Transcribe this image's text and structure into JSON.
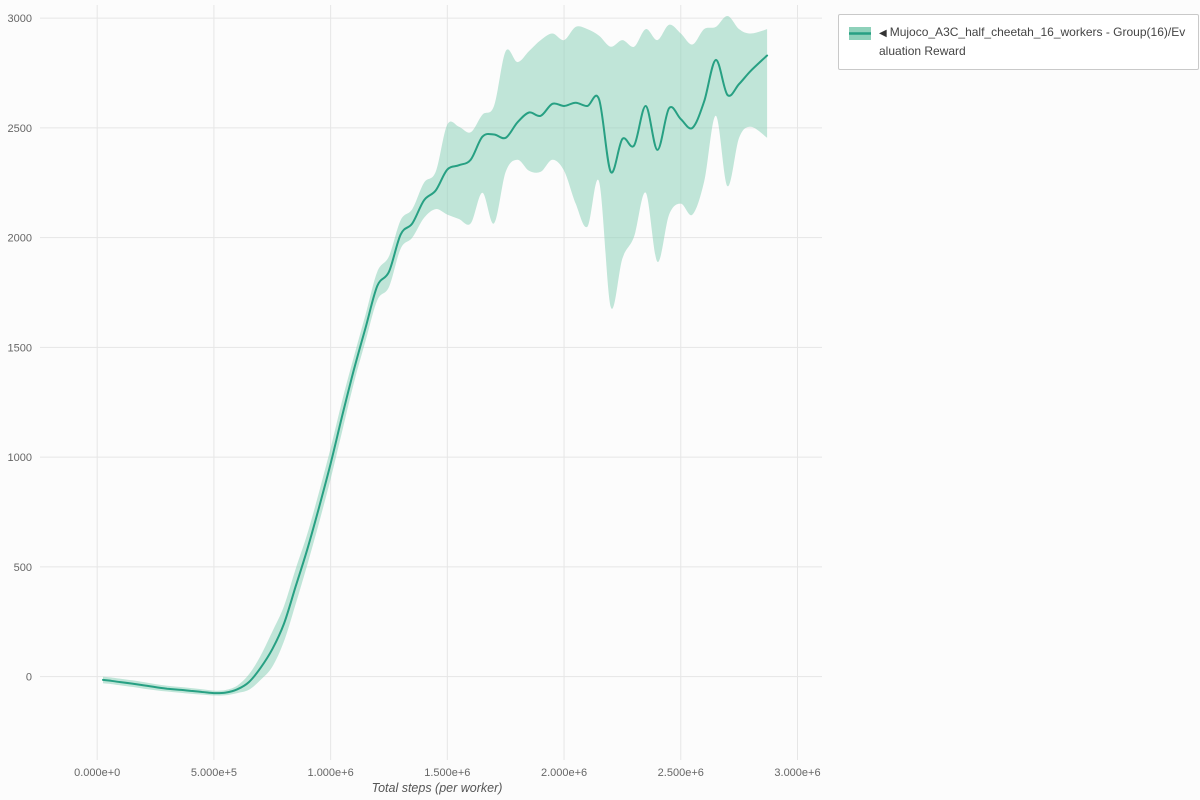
{
  "page": {
    "background": "#fcfcfc"
  },
  "axes": {
    "xlabel": "Total steps (per worker)"
  },
  "legend": {
    "marker": "◀",
    "label": "Mujoco_A3C_half_cheetah_16_workers - Group(16)/Evaluation Reward"
  },
  "chart_data": {
    "type": "line",
    "title": "",
    "xlabel": "Total steps (per worker)",
    "ylabel": "",
    "grid": true,
    "legend_position": "top-right-outside",
    "xlim": [
      -245000,
      3105000
    ],
    "ylim": [
      -380,
      3060
    ],
    "x_ticks": [
      0,
      500000,
      1000000,
      1500000,
      2000000,
      2500000,
      3000000
    ],
    "x_tick_labels": [
      "0.000e+0",
      "5.000e+5",
      "1.000e+6",
      "1.500e+6",
      "2.000e+6",
      "2.500e+6",
      "3.000e+6"
    ],
    "y_ticks": [
      0,
      500,
      1000,
      1500,
      2000,
      2500,
      3000
    ],
    "colors": {
      "line": "#27a083",
      "band": "#8ed1ba",
      "band_opacity": 0.55,
      "grid": "#e6e6e6",
      "tick_label": "#666666"
    },
    "series": [
      {
        "name": "Mujoco_A3C_half_cheetah_16_workers - Group(16)/Evaluation Reward",
        "x": [
          25000,
          50000,
          100000,
          150000,
          200000,
          250000,
          300000,
          350000,
          400000,
          450000,
          500000,
          550000,
          600000,
          650000,
          700000,
          750000,
          800000,
          850000,
          900000,
          950000,
          1000000,
          1050000,
          1100000,
          1150000,
          1200000,
          1250000,
          1300000,
          1350000,
          1400000,
          1450000,
          1500000,
          1550000,
          1600000,
          1650000,
          1700000,
          1750000,
          1800000,
          1850000,
          1900000,
          1950000,
          2000000,
          2050000,
          2100000,
          2150000,
          2200000,
          2250000,
          2300000,
          2350000,
          2400000,
          2450000,
          2500000,
          2550000,
          2600000,
          2650000,
          2700000,
          2750000,
          2800000,
          2870000
        ],
        "mean": [
          -15,
          -18,
          -25,
          -32,
          -40,
          -48,
          -55,
          -60,
          -65,
          -70,
          -75,
          -73,
          -58,
          -25,
          40,
          125,
          240,
          410,
          580,
          770,
          970,
          1190,
          1400,
          1590,
          1780,
          1845,
          2015,
          2065,
          2170,
          2215,
          2310,
          2330,
          2355,
          2460,
          2470,
          2455,
          2525,
          2570,
          2555,
          2610,
          2600,
          2615,
          2600,
          2630,
          2300,
          2450,
          2420,
          2600,
          2400,
          2590,
          2540,
          2500,
          2620,
          2810,
          2650,
          2700,
          2760,
          2830
        ],
        "lower": [
          -30,
          -33,
          -40,
          -47,
          -55,
          -62,
          -68,
          -73,
          -78,
          -82,
          -86,
          -85,
          -75,
          -60,
          -15,
          45,
          160,
          330,
          510,
          700,
          900,
          1120,
          1340,
          1530,
          1715,
          1775,
          1950,
          2000,
          2090,
          2130,
          2105,
          2085,
          2065,
          2205,
          2065,
          2300,
          2355,
          2305,
          2300,
          2355,
          2305,
          2155,
          2050,
          2255,
          1685,
          1905,
          2005,
          2205,
          1890,
          2105,
          2155,
          2105,
          2255,
          2555,
          2235,
          2455,
          2505,
          2455
        ],
        "upper": [
          0,
          -3,
          -10,
          -17,
          -25,
          -34,
          -42,
          -47,
          -52,
          -58,
          -64,
          -61,
          -41,
          10,
          95,
          205,
          320,
          490,
          650,
          840,
          1040,
          1260,
          1460,
          1650,
          1845,
          1915,
          2080,
          2130,
          2250,
          2300,
          2515,
          2505,
          2480,
          2560,
          2600,
          2850,
          2800,
          2850,
          2900,
          2930,
          2900,
          2960,
          2950,
          2920,
          2870,
          2900,
          2870,
          2950,
          2900,
          2970,
          2930,
          2880,
          2950,
          2960,
          3010,
          2950,
          2930,
          2950
        ]
      }
    ]
  }
}
